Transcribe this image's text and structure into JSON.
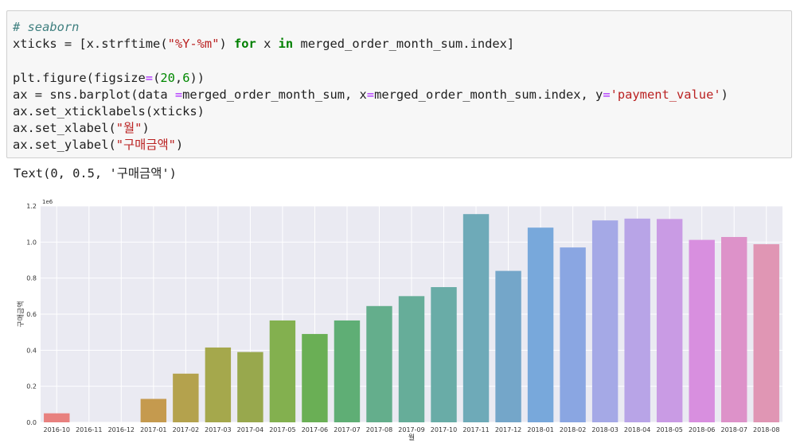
{
  "code_cell": {
    "lines": [
      [
        {
          "t": "# seaborn",
          "c": "c-comment"
        }
      ],
      [
        {
          "t": "xticks = [x.strftime("
        },
        {
          "t": "\"%Y-%m\"",
          "c": "c-str"
        },
        {
          "t": ") "
        },
        {
          "t": "for",
          "c": "c-kw"
        },
        {
          "t": " x "
        },
        {
          "t": "in",
          "c": "c-kw"
        },
        {
          "t": " merged_order_month_sum.index]"
        }
      ],
      [],
      [
        {
          "t": "plt.figure(figsize"
        },
        {
          "t": "=",
          "c": "c-op"
        },
        {
          "t": "("
        },
        {
          "t": "20",
          "c": "c-num"
        },
        {
          "t": ","
        },
        {
          "t": "6",
          "c": "c-num"
        },
        {
          "t": "))"
        }
      ],
      [
        {
          "t": "ax = sns.barplot(data "
        },
        {
          "t": "=",
          "c": "c-op"
        },
        {
          "t": "merged_order_month_sum, x"
        },
        {
          "t": "=",
          "c": "c-op"
        },
        {
          "t": "merged_order_month_sum.index, y"
        },
        {
          "t": "=",
          "c": "c-op"
        },
        {
          "t": "'payment_value'",
          "c": "c-str"
        },
        {
          "t": ")"
        }
      ],
      [
        {
          "t": "ax.set_xticklabels(xticks)"
        }
      ],
      [
        {
          "t": "ax.set_xlabel("
        },
        {
          "t": "\"월\"",
          "c": "c-str"
        },
        {
          "t": ")"
        }
      ],
      [
        {
          "t": "ax.set_ylabel("
        },
        {
          "t": "\"구매금액\"",
          "c": "c-str"
        },
        {
          "t": ")"
        }
      ]
    ]
  },
  "output_text": "Text(0, 0.5, '구매금액')",
  "chart_data": {
    "type": "bar",
    "categories": [
      "2016-10",
      "2016-11",
      "2016-12",
      "2017-01",
      "2017-02",
      "2017-03",
      "2017-04",
      "2017-05",
      "2017-06",
      "2017-07",
      "2017-08",
      "2017-09",
      "2017-10",
      "2017-11",
      "2017-12",
      "2018-01",
      "2018-02",
      "2018-03",
      "2018-04",
      "2018-05",
      "2018-06",
      "2018-07",
      "2018-08"
    ],
    "values": [
      0.05,
      0.0,
      0.0,
      0.13,
      0.27,
      0.415,
      0.39,
      0.565,
      0.49,
      0.565,
      0.645,
      0.7,
      0.75,
      1.155,
      0.84,
      1.08,
      0.97,
      1.12,
      1.13,
      1.128,
      1.012,
      1.028,
      0.988
    ],
    "colors": [
      "#e8817f",
      "#e3886d",
      "#d68f52",
      "#c59a4e",
      "#b4a24d",
      "#a5a84c",
      "#98a84d",
      "#83b04f",
      "#6aaf55",
      "#5fae75",
      "#64ae8c",
      "#66ad99",
      "#69aca7",
      "#6eaab8",
      "#74a6c9",
      "#78a8db",
      "#8aa6e2",
      "#a5a9e6",
      "#b8a4e7",
      "#c99be4",
      "#d88fdf",
      "#dd92c9",
      "#e096b4"
    ],
    "xlabel": "월",
    "ylabel": "구매금액",
    "yticks": [
      "0.0",
      "0.2",
      "0.4",
      "0.6",
      "0.8",
      "1.0",
      "1.2"
    ],
    "ytick_values": [
      0.0,
      0.2,
      0.4,
      0.6,
      0.8,
      1.0,
      1.2
    ],
    "ylim": [
      0,
      1.2
    ],
    "offset_label": "1e6",
    "grid": true,
    "style": "darkgrid",
    "axes_bg": "#eaeaf2"
  }
}
